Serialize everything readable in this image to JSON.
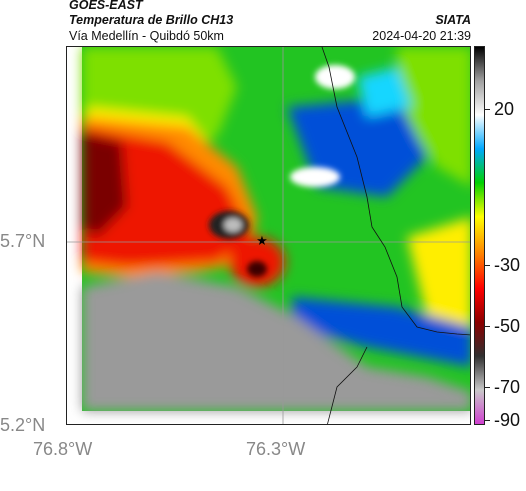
{
  "header": {
    "satellite": "GOES-EAST",
    "product": "Temperatura de Brillo CH13",
    "region": "Vía Medellín - Quibdó 50km",
    "agency": "SIATA",
    "datetime": "2024-04-20 21:39"
  },
  "axes": {
    "lat_ticks": [
      "5.7°N",
      "5.2°N"
    ],
    "lon_ticks": [
      "76.8°W",
      "76.3°W"
    ]
  },
  "colorbar": {
    "ticks": [
      "20",
      "-30",
      "-50",
      "-70",
      "-90"
    ],
    "colors": [
      "#d040d0",
      "#c8c8c8",
      "#303030",
      "#8b0000",
      "#ff0000",
      "#ff8000",
      "#ffff00",
      "#00d000",
      "#00a8ff",
      "#ffffff",
      "#a0a0a0",
      "#000000"
    ]
  },
  "map": {
    "marker": "star-icon",
    "colors": {
      "cold": "#9a9a9a",
      "green": "#22c422",
      "lime": "#7ee000",
      "yellow": "#ffee00",
      "orange": "#ff8a00",
      "red": "#ee1800",
      "darkred": "#7a0000",
      "blue": "#0050d8",
      "cyan": "#19d6ff"
    }
  }
}
